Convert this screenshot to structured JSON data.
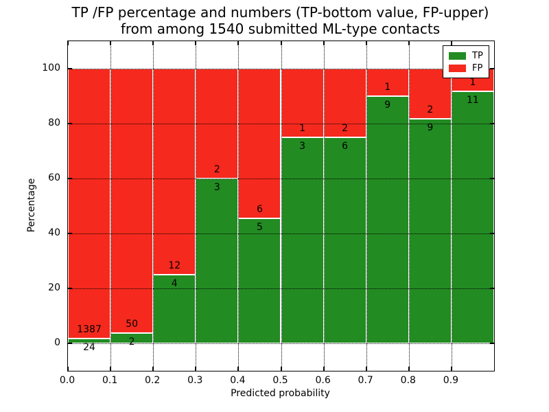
{
  "figure": {
    "title_line1": "TP /FP percentage and numbers (TP-bottom value, FP-upper)",
    "title_line2": "from among 1540 submitted ML-type contacts"
  },
  "chart_data": {
    "type": "bar",
    "stacked": true,
    "normalized": "percent",
    "title": "TP /FP percentage and numbers (TP-bottom value, FP-upper)\nfrom among 1540 submitted ML-type contacts",
    "xlabel": "Predicted probability",
    "ylabel": "Percentage",
    "total_contacts": 1540,
    "bin_edges": [
      0.0,
      0.1,
      0.2,
      0.3,
      0.4,
      0.5,
      0.6,
      0.7,
      0.8,
      0.9,
      1.0
    ],
    "categories": [
      "0.0-0.1",
      "0.1-0.2",
      "0.2-0.3",
      "0.3-0.4",
      "0.4-0.5",
      "0.5-0.6",
      "0.6-0.7",
      "0.7-0.8",
      "0.8-0.9",
      "0.9-1.0"
    ],
    "series": [
      {
        "name": "TP",
        "color": "#228B22",
        "counts": [
          24,
          2,
          4,
          3,
          5,
          3,
          6,
          9,
          9,
          11
        ]
      },
      {
        "name": "FP",
        "color": "#F5291D",
        "counts": [
          1387,
          50,
          12,
          2,
          6,
          1,
          2,
          1,
          2,
          1
        ]
      }
    ],
    "tp_percent": [
      1.7,
      3.85,
      25.0,
      60.0,
      45.45,
      75.0,
      75.0,
      90.0,
      81.82,
      91.67
    ],
    "x_ticks": [
      "0.0",
      "0.1",
      "0.2",
      "0.3",
      "0.4",
      "0.5",
      "0.6",
      "0.7",
      "0.8",
      "0.9"
    ],
    "y_ticks": [
      "0",
      "20",
      "40",
      "60",
      "80",
      "100"
    ],
    "y_tick_values": [
      0,
      20,
      40,
      60,
      80,
      100
    ],
    "xlim": [
      0.0,
      1.0
    ],
    "ylim": [
      -10,
      110
    ],
    "grid": "dotted",
    "legend": {
      "position": "upper-right",
      "entries": [
        "TP",
        "FP"
      ]
    }
  }
}
